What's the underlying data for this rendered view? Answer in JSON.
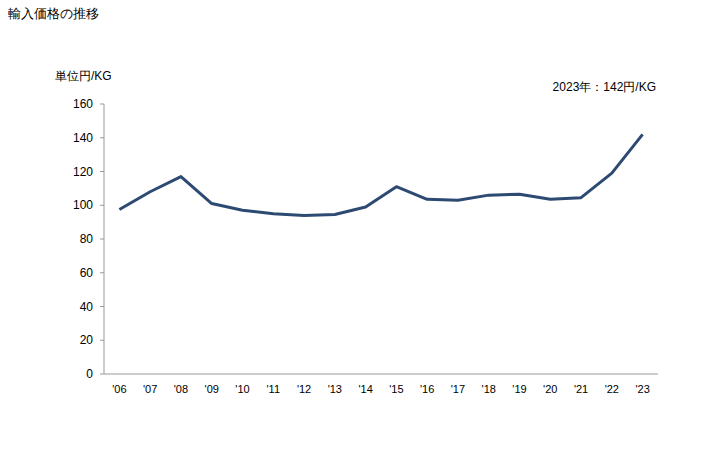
{
  "chart_data": {
    "type": "line",
    "title": "輸入価格の推移",
    "y_label": "単位円/KG",
    "annotation": "2023年：142円/KG",
    "categories": [
      "'06",
      "'07",
      "'08",
      "'09",
      "'10",
      "'11",
      "'12",
      "'13",
      "'14",
      "'15",
      "'16",
      "'17",
      "'18",
      "'19",
      "'20",
      "'21",
      "'22",
      "'23"
    ],
    "values": [
      97.5,
      108,
      117,
      101,
      97,
      95,
      94,
      94.5,
      99,
      111,
      103.5,
      103,
      106,
      106.5,
      103.5,
      104.5,
      119,
      142
    ],
    "color": "#2d4a73",
    "ylim": [
      0,
      160
    ],
    "yticks": [
      0,
      20,
      40,
      60,
      80,
      100,
      120,
      140,
      160
    ],
    "grid": false
  }
}
